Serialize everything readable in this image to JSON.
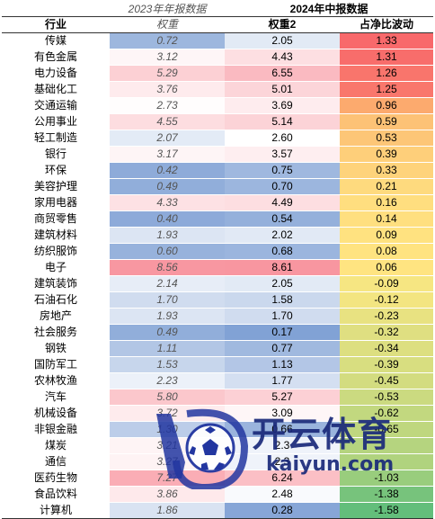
{
  "header": {
    "group_2023": "2023年年报数据",
    "group_2024": "2024年中报数据",
    "col_industry": "行业",
    "col_weight": "权重",
    "col_weight2": "权重2",
    "col_change": "占净比波动"
  },
  "rows": [
    {
      "name": "传媒",
      "w1": "0.72",
      "w2": "2.05",
      "chg": "1.33"
    },
    {
      "name": "有色金属",
      "w1": "3.12",
      "w2": "4.43",
      "chg": "1.31"
    },
    {
      "name": "电力设备",
      "w1": "5.29",
      "w2": "6.55",
      "chg": "1.26"
    },
    {
      "name": "基础化工",
      "w1": "3.76",
      "w2": "5.01",
      "chg": "1.25"
    },
    {
      "name": "交通运输",
      "w1": "2.73",
      "w2": "3.69",
      "chg": "0.96"
    },
    {
      "name": "公用事业",
      "w1": "4.55",
      "w2": "5.14",
      "chg": "0.59"
    },
    {
      "name": "轻工制造",
      "w1": "2.07",
      "w2": "2.60",
      "chg": "0.53"
    },
    {
      "name": "银行",
      "w1": "3.17",
      "w2": "3.57",
      "chg": "0.39"
    },
    {
      "name": "环保",
      "w1": "0.42",
      "w2": "0.75",
      "chg": "0.33"
    },
    {
      "name": "美容护理",
      "w1": "0.49",
      "w2": "0.70",
      "chg": "0.21"
    },
    {
      "name": "家用电器",
      "w1": "4.33",
      "w2": "4.49",
      "chg": "0.16"
    },
    {
      "name": "商贸零售",
      "w1": "0.40",
      "w2": "0.54",
      "chg": "0.14"
    },
    {
      "name": "建筑材料",
      "w1": "1.93",
      "w2": "2.02",
      "chg": "0.09"
    },
    {
      "name": "纺织服饰",
      "w1": "0.60",
      "w2": "0.68",
      "chg": "0.08"
    },
    {
      "name": "电子",
      "w1": "8.56",
      "w2": "8.61",
      "chg": "0.06"
    },
    {
      "name": "建筑装饰",
      "w1": "2.14",
      "w2": "2.05",
      "chg": "-0.09"
    },
    {
      "name": "石油石化",
      "w1": "1.70",
      "w2": "1.58",
      "chg": "-0.12"
    },
    {
      "name": "房地产",
      "w1": "1.93",
      "w2": "1.70",
      "chg": "-0.23"
    },
    {
      "name": "社会服务",
      "w1": "0.49",
      "w2": "0.17",
      "chg": "-0.32"
    },
    {
      "name": "钢铁",
      "w1": "1.11",
      "w2": "0.77",
      "chg": "-0.34"
    },
    {
      "name": "国防军工",
      "w1": "1.53",
      "w2": "1.13",
      "chg": "-0.39"
    },
    {
      "name": "农林牧渔",
      "w1": "2.23",
      "w2": "1.77",
      "chg": "-0.45"
    },
    {
      "name": "汽车",
      "w1": "5.80",
      "w2": "5.27",
      "chg": "-0.53"
    },
    {
      "name": "机械设备",
      "w1": "3.72",
      "w2": "3.09",
      "chg": "-0.62"
    },
    {
      "name": "非银金融",
      "w1": "1.30",
      "w2": "0.66",
      "chg": "-0.65"
    },
    {
      "name": "煤炭",
      "w1": "3.21",
      "w2": "2.3",
      "chg": ""
    },
    {
      "name": "通信",
      "w1": "3.27",
      "w2": "2.3",
      "chg": ""
    },
    {
      "name": "医药生物",
      "w1": "7.27",
      "w2": "6.24",
      "chg": "-1.03"
    },
    {
      "name": "食品饮料",
      "w1": "3.86",
      "w2": "2.48",
      "chg": "-1.38"
    },
    {
      "name": "计算机",
      "w1": "1.86",
      "w2": "0.28",
      "chg": "-1.58"
    }
  ],
  "watermark": {
    "brand": "开云体育",
    "url": "kaiyun.com"
  }
}
